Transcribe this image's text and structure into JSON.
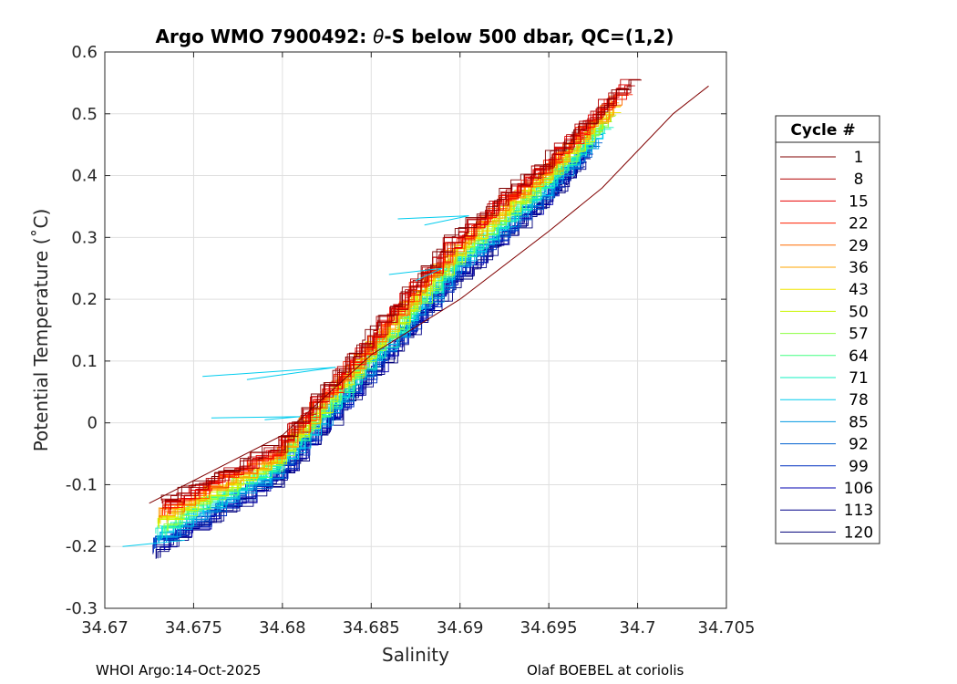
{
  "chart_data": {
    "type": "line",
    "title_prefix": "Argo WMO 7900492: ",
    "title_theta": "θ",
    "title_suffix": "-S below 500 dbar,  QC=(1,2)",
    "xlabel": "Salinity",
    "ylabel": "Potential Temperature (˚C)",
    "xlim": [
      34.67,
      34.705
    ],
    "ylim": [
      -0.3,
      0.6
    ],
    "xticks": [
      34.67,
      34.675,
      34.68,
      34.685,
      34.69,
      34.695,
      34.7,
      34.705
    ],
    "xtick_labels": [
      "34.67",
      "34.675",
      "34.68",
      "34.685",
      "34.69",
      "34.695",
      "34.7",
      "34.705"
    ],
    "yticks": [
      -0.3,
      -0.2,
      -0.1,
      0,
      0.1,
      0.2,
      0.3,
      0.4,
      0.5,
      0.6
    ],
    "ytick_labels": [
      "-0.3",
      "-0.2",
      "-0.1",
      "0",
      "0.1",
      "0.2",
      "0.3",
      "0.4",
      "0.5",
      "0.6"
    ],
    "grid": true,
    "legend": {
      "title": "Cycle #",
      "location": "right-outside",
      "entries": [
        {
          "label": "1",
          "color": "#800000"
        },
        {
          "label": "8",
          "color": "#b40000"
        },
        {
          "label": "15",
          "color": "#e80000"
        },
        {
          "label": "22",
          "color": "#ff2000"
        },
        {
          "label": "29",
          "color": "#ff6a00"
        },
        {
          "label": "36",
          "color": "#ffa400"
        },
        {
          "label": "43",
          "color": "#f2e600"
        },
        {
          "label": "50",
          "color": "#c9f500"
        },
        {
          "label": "57",
          "color": "#8cff40"
        },
        {
          "label": "64",
          "color": "#40ff80"
        },
        {
          "label": "71",
          "color": "#10f0c0"
        },
        {
          "label": "78",
          "color": "#00ccee"
        },
        {
          "label": "85",
          "color": "#0098e0"
        },
        {
          "label": "92",
          "color": "#0060d0"
        },
        {
          "label": "99",
          "color": "#0030c0"
        },
        {
          "label": "106",
          "color": "#0000b0"
        },
        {
          "label": "113",
          "color": "#000088"
        },
        {
          "label": "120",
          "color": "#00007a"
        }
      ]
    },
    "series_envelope": {
      "description": "theta-S curves for cycles 1-120, warm end to cold end",
      "warm_cycle_points": [
        [
          34.6735,
          -0.13
        ],
        [
          34.68,
          -0.04
        ],
        [
          34.685,
          0.13
        ],
        [
          34.69,
          0.3
        ],
        [
          34.695,
          0.42
        ],
        [
          34.7,
          0.56
        ]
      ],
      "cold_cycle_points": [
        [
          34.673,
          -0.22
        ],
        [
          34.68,
          -0.1
        ],
        [
          34.685,
          0.06
        ],
        [
          34.69,
          0.22
        ],
        [
          34.695,
          0.35
        ],
        [
          34.697,
          0.42
        ]
      ],
      "cycle1_points": [
        [
          34.6725,
          -0.13
        ],
        [
          34.68,
          -0.02
        ],
        [
          34.685,
          0.11
        ],
        [
          34.69,
          0.2
        ],
        [
          34.695,
          0.31
        ],
        [
          34.698,
          0.38
        ],
        [
          34.7,
          0.44
        ],
        [
          34.702,
          0.5
        ],
        [
          34.704,
          0.545
        ]
      ]
    }
  },
  "footer": {
    "left": "WHOI Argo:14-Oct-2025",
    "right": "Olaf BOEBEL at coriolis"
  }
}
